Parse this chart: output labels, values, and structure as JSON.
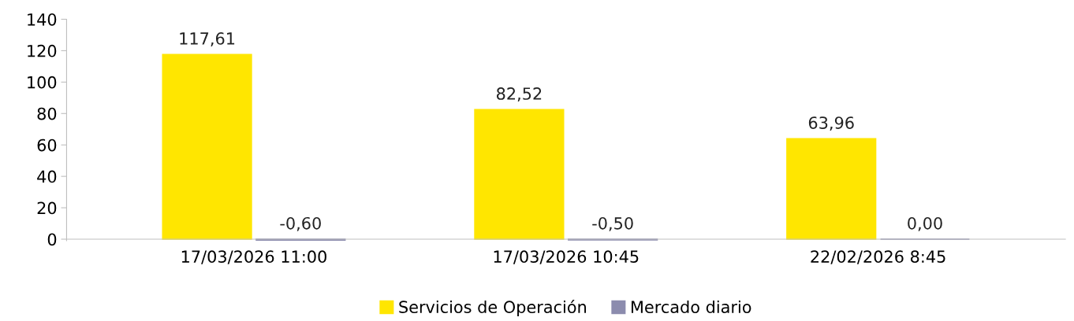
{
  "chart_data": {
    "type": "bar",
    "categories": [
      "17/03/2026 11:00",
      "17/03/2026 10:45",
      "22/02/2026 8:45"
    ],
    "series": [
      {
        "name": "Servicios de Operación",
        "color": "#ffe600",
        "values": [
          117.61,
          82.52,
          63.96
        ],
        "value_labels": [
          "117,61",
          "82,52",
          "63,96"
        ]
      },
      {
        "name": "Mercado diario",
        "color": "#8c8cae",
        "values": [
          -0.6,
          -0.5,
          0.0
        ],
        "value_labels": [
          "-0,60",
          "-0,50",
          "0,00"
        ]
      }
    ],
    "ylim": [
      -1,
      140
    ],
    "yticks": [
      0,
      20,
      40,
      60,
      80,
      100,
      120,
      140
    ],
    "grid": false,
    "legend": "bottom"
  }
}
